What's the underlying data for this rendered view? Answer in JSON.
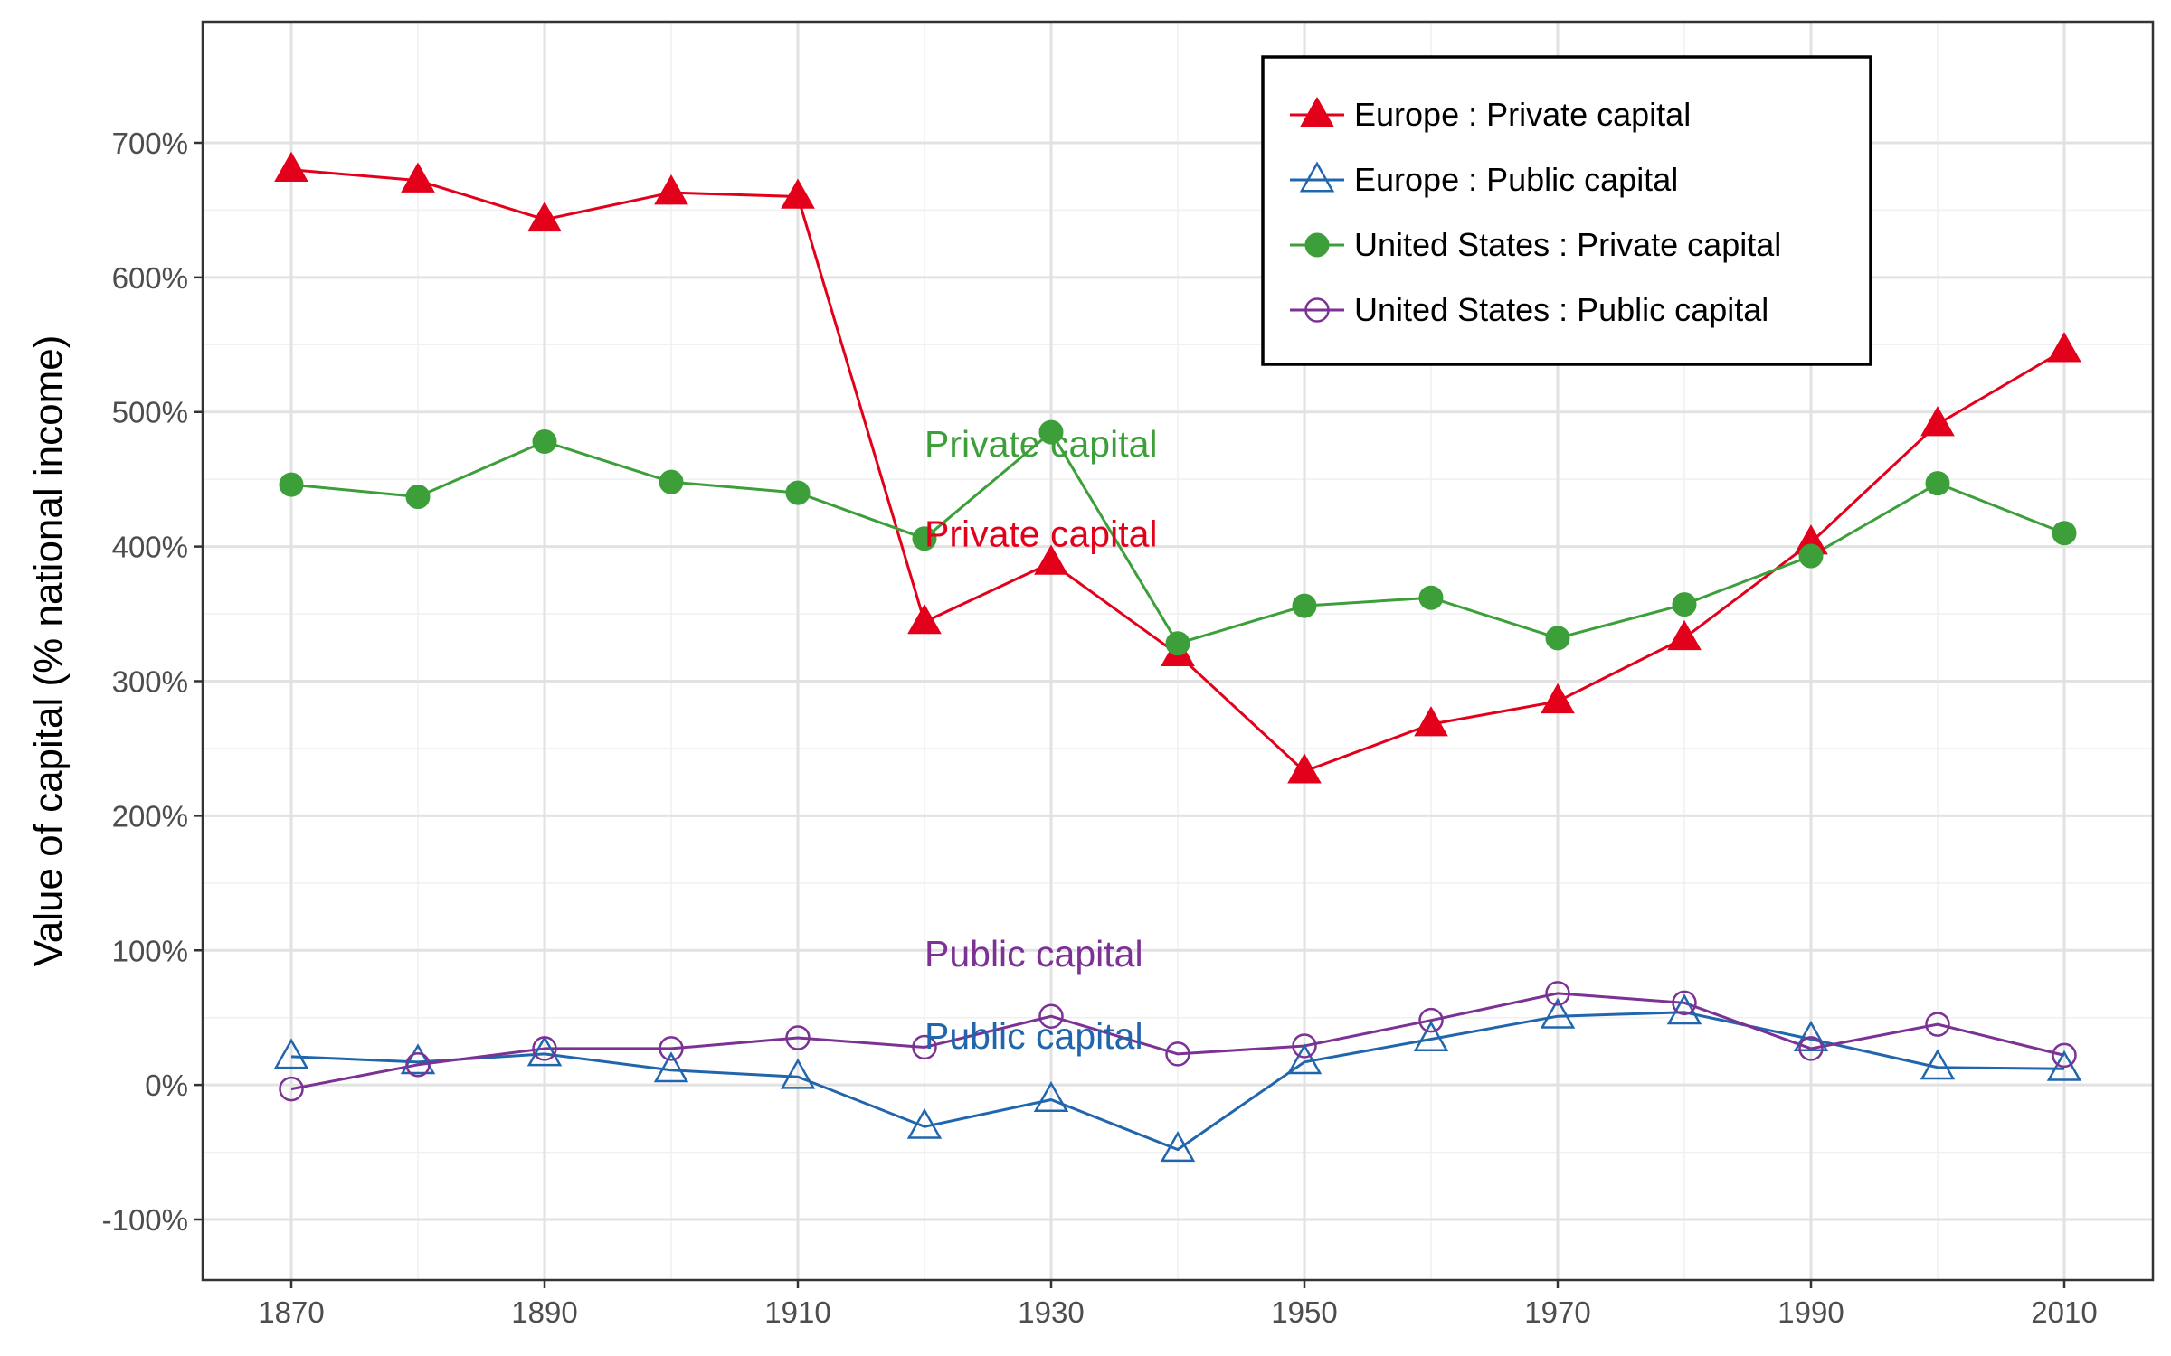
{
  "chart_data": {
    "type": "line",
    "title": "",
    "xlabel": "",
    "ylabel": "Value of capital (% national income)",
    "x": [
      1870,
      1880,
      1890,
      1900,
      1910,
      1920,
      1930,
      1940,
      1950,
      1960,
      1970,
      1980,
      1990,
      2000,
      2010
    ],
    "xlim": [
      1863,
      2017
    ],
    "ylim": [
      -145,
      790
    ],
    "x_tick_values": [
      1870,
      1890,
      1910,
      1930,
      1950,
      1970,
      1990,
      2010
    ],
    "x_tick_labels": [
      "1870",
      "1890",
      "1910",
      "1930",
      "1950",
      "1970",
      "1990",
      "2010"
    ],
    "y_tick_values": [
      -100,
      0,
      100,
      200,
      300,
      400,
      500,
      600,
      700
    ],
    "y_tick_labels": [
      "-100%",
      "0%",
      "100%",
      "200%",
      "300%",
      "400%",
      "500%",
      "600%",
      "700%"
    ],
    "grid": true,
    "legend_position": "top-right",
    "series": [
      {
        "name": "Europe : Private capital",
        "color": "#e3001b",
        "marker": "filled-triangle",
        "values": [
          680,
          672,
          643,
          663,
          660,
          344,
          388,
          320,
          233,
          268,
          285,
          332,
          403,
          491,
          546
        ]
      },
      {
        "name": "Europe : Public capital",
        "color": "#2166ac",
        "marker": "open-triangle",
        "values": [
          21,
          17,
          23,
          11,
          6,
          -31,
          -11,
          -48,
          17,
          34,
          51,
          54,
          34,
          13,
          12
        ]
      },
      {
        "name": "United States : Private capital",
        "color": "#3d9f3a",
        "marker": "filled-circle",
        "values": [
          446,
          437,
          478,
          448,
          440,
          406,
          485,
          328,
          356,
          362,
          332,
          357,
          393,
          447,
          410
        ]
      },
      {
        "name": "United States : Public capital",
        "color": "#7b3294",
        "marker": "open-circle",
        "values": [
          -3,
          15,
          27,
          27,
          35,
          28,
          51,
          23,
          29,
          48,
          68,
          61,
          27,
          45,
          22
        ]
      }
    ],
    "annotations": [
      {
        "text": "Private capital",
        "x": 1920,
        "y": 467,
        "color": "#3d9f3a"
      },
      {
        "text": "Private capital",
        "x": 1920,
        "y": 400,
        "color": "#e3001b"
      },
      {
        "text": "Public capital",
        "x": 1920,
        "y": 88,
        "color": "#7b3294"
      },
      {
        "text": "Public capital",
        "x": 1920,
        "y": 27,
        "color": "#2166ac"
      }
    ]
  }
}
